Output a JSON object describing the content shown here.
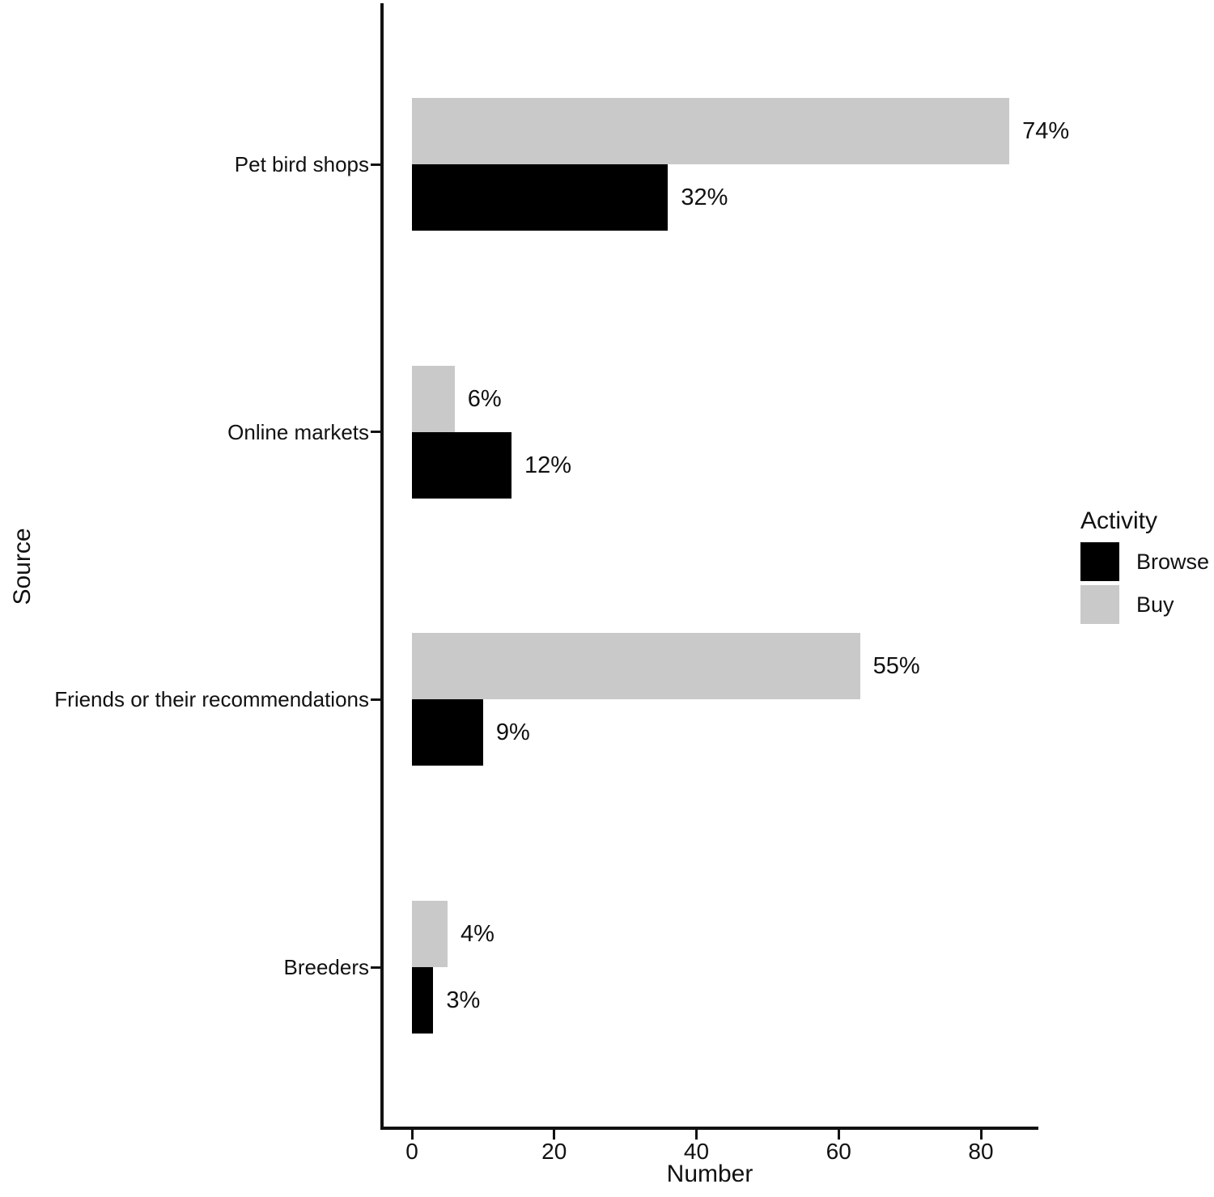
{
  "chart_data": {
    "type": "bar",
    "orientation": "horizontal",
    "title": "",
    "xlabel": "Number",
    "ylabel": "Source",
    "xlim": [
      -4,
      88
    ],
    "x_ticks": [
      0,
      20,
      40,
      60,
      80
    ],
    "grid": false,
    "background": "#ffffff",
    "axis_color": "#111111",
    "categories": [
      "Pet bird shops",
      "Online markets",
      "Friends or their recommendations",
      "Breeders"
    ],
    "series": [
      {
        "name": "Browse",
        "color": "#000000",
        "values": [
          36,
          14,
          10,
          3
        ],
        "labels": [
          "32%",
          "12%",
          "9%",
          "3%"
        ]
      },
      {
        "name": "Buy",
        "color": "#c9c9c9",
        "values": [
          84,
          6,
          63,
          5
        ],
        "labels": [
          "74%",
          "6%",
          "55%",
          "4%"
        ]
      }
    ],
    "legend": {
      "title": "Activity",
      "position": "right"
    }
  }
}
